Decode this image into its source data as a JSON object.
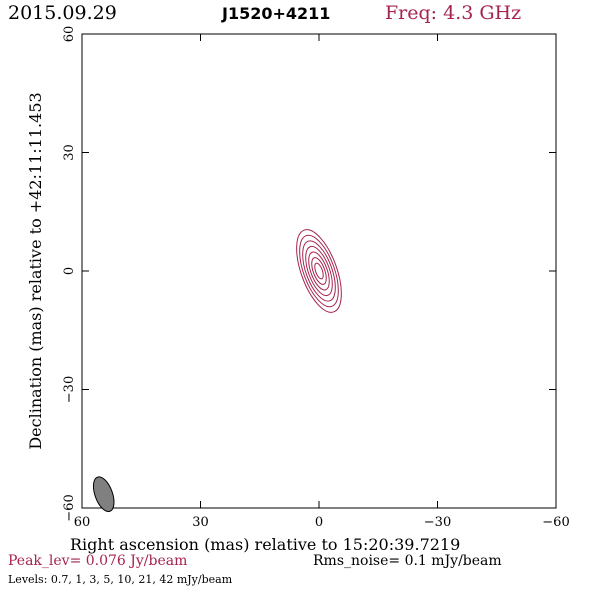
{
  "header": {
    "date": "2015.09.29",
    "source": "J1520+4211",
    "freq": "Freq: 4.3 GHz"
  },
  "footer": {
    "peak": "Peak_lev=  0.076 Jy/beam",
    "rms": "Rms_noise=   0.1 mJy/beam",
    "levels": "Levels: 0.7,    1,    3,    5,   10,   21,   42 mJy/beam"
  },
  "chart_data": {
    "type": "contour",
    "xlabel": "Right ascension (mas) relative to 15:20:39.7219",
    "ylabel": "Declination (mas) relative to +42:11:11.453",
    "xlim": [
      60,
      -60
    ],
    "ylim": [
      -60,
      60
    ],
    "xticks": [
      60,
      30,
      0,
      -30,
      -60
    ],
    "yticks": [
      -60,
      -30,
      0,
      30,
      60
    ],
    "contour_color": "#a5234f",
    "contour_levels_mJy": [
      0.7,
      1,
      3,
      5,
      10,
      21,
      42
    ],
    "source_component": {
      "x": 0,
      "y": 0,
      "major_axis": 11,
      "minor_axis": 4.5,
      "position_angle_deg": 20
    },
    "beam": {
      "x": 54.5,
      "y": -56.5,
      "major_axis": 4.6,
      "minor_axis": 2.2,
      "position_angle_deg": 20,
      "fill": "#808080"
    }
  }
}
